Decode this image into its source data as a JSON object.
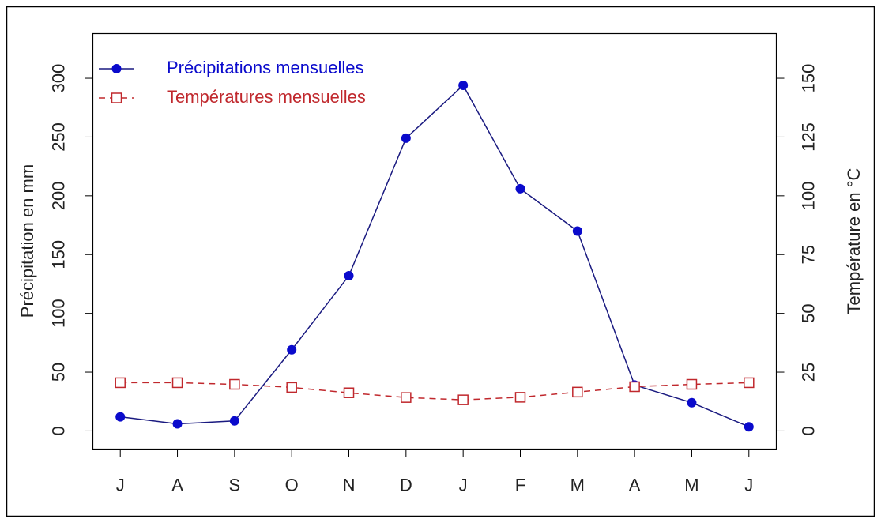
{
  "chart_data": {
    "type": "line",
    "categories": [
      "J",
      "A",
      "S",
      "O",
      "N",
      "D",
      "J",
      "F",
      "M",
      "A",
      "M",
      "J"
    ],
    "series": [
      {
        "name": "Précipitations mensuelles",
        "color": "#0a0acc",
        "line_color": "#1a1a80",
        "marker": "circle",
        "dash": false,
        "axis": "y",
        "values": [
          12,
          6,
          8.5,
          69,
          132,
          249,
          294,
          206,
          170,
          39,
          24,
          3.5
        ]
      },
      {
        "name": "Températures mensuelles",
        "color": "#c0282d",
        "marker": "square",
        "dash": true,
        "axis": "y2",
        "values": [
          20.5,
          20.5,
          19.8,
          18.5,
          16.2,
          14.2,
          13.2,
          14.3,
          16.5,
          18.8,
          19.8,
          20.5
        ]
      }
    ],
    "ylabel": "Précipitation en mm",
    "y2label": "Température en °C",
    "ylim": [
      -15.5,
      338
    ],
    "yticks": [
      0,
      50,
      100,
      150,
      200,
      250,
      300
    ],
    "y2lim": [
      -7.75,
      169
    ],
    "y2ticks": [
      0,
      25,
      50,
      75,
      100,
      125,
      150
    ],
    "legend": "top-left"
  }
}
